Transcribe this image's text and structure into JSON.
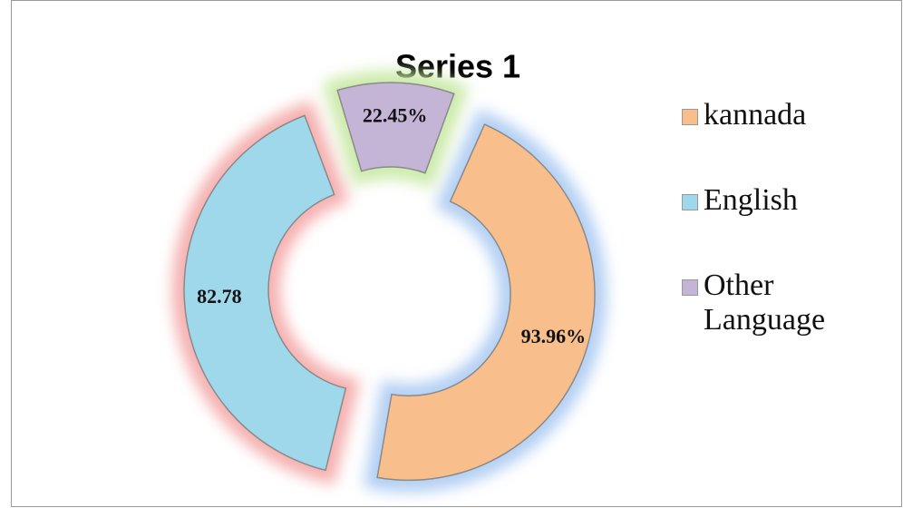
{
  "chart_data": {
    "type": "doughnut",
    "title": "Series 1",
    "categories": [
      "kannada",
      "English",
      "Other Language"
    ],
    "values": [
      93.96,
      82.78,
      22.45
    ],
    "value_labels": [
      "93.96%",
      "82.78",
      "22.45%"
    ],
    "colors": [
      "#f8bf8c",
      "#9fd8ea",
      "#c4b5d6"
    ],
    "legend": "right"
  }
}
